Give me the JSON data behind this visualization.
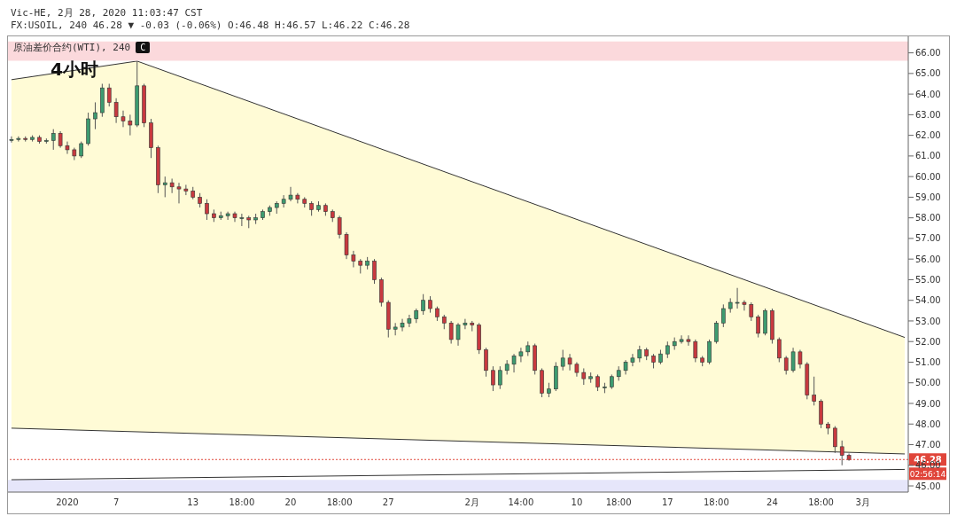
{
  "chart_data": {
    "type": "candlestick",
    "title": "Vic-HE, 2月 28, 2020 11:03:47 CST",
    "subtitle": "FX:USOIL, 240 46.28 ▼ -0.03 (-0.06%) O:46.48 H:46.57 L:46.22 C:46.28",
    "annotations": [
      "原油差价合约(WTI), 240",
      "C",
      "4小时",
      "02:56:14"
    ],
    "categories": [
      null,
      null,
      null,
      null,
      null,
      null,
      null,
      null,
      "2020",
      null,
      null,
      null,
      null,
      null,
      null,
      "7",
      null,
      null,
      null,
      null,
      null,
      null,
      null,
      null,
      null,
      null,
      "13",
      null,
      null,
      null,
      null,
      null,
      null,
      "18:00",
      null,
      null,
      null,
      null,
      null,
      null,
      "20",
      null,
      null,
      null,
      null,
      null,
      null,
      "18:00",
      null,
      null,
      null,
      null,
      null,
      null,
      "27",
      null,
      null,
      null,
      null,
      null,
      null,
      null,
      null,
      null,
      null,
      null,
      "2月",
      null,
      null,
      null,
      null,
      null,
      null,
      "14:00",
      null,
      null,
      null,
      null,
      null,
      null,
      null,
      "10",
      null,
      null,
      null,
      null,
      null,
      "18:00",
      null,
      null,
      null,
      null,
      null,
      null,
      "17",
      null,
      null,
      null,
      null,
      null,
      null,
      "18:00",
      null,
      null,
      null,
      null,
      null,
      null,
      null,
      "24",
      null,
      null,
      null,
      null,
      null,
      null,
      "18:00",
      null,
      null,
      null,
      null,
      null,
      "3月",
      null,
      null,
      null,
      null,
      null,
      null
    ],
    "ohlc": [
      [
        61.75,
        61.95,
        61.65,
        61.8
      ],
      [
        61.8,
        61.95,
        61.7,
        61.85
      ],
      [
        61.85,
        61.95,
        61.7,
        61.8
      ],
      [
        61.8,
        62.0,
        61.7,
        61.9
      ],
      [
        61.9,
        62.0,
        61.6,
        61.7
      ],
      [
        61.7,
        61.85,
        61.6,
        61.75
      ],
      [
        61.75,
        62.3,
        61.3,
        62.1
      ],
      [
        62.1,
        62.2,
        61.4,
        61.5
      ],
      [
        61.5,
        61.7,
        61.1,
        61.3
      ],
      [
        61.3,
        61.4,
        60.8,
        61.0
      ],
      [
        61.0,
        61.7,
        60.9,
        61.6
      ],
      [
        61.6,
        63.1,
        61.5,
        62.8
      ],
      [
        62.8,
        63.6,
        62.3,
        63.1
      ],
      [
        63.1,
        64.5,
        62.9,
        64.3
      ],
      [
        64.3,
        64.5,
        63.4,
        63.6
      ],
      [
        63.6,
        63.8,
        62.6,
        62.9
      ],
      [
        62.9,
        63.2,
        62.4,
        62.7
      ],
      [
        62.7,
        63.0,
        62.0,
        62.5
      ],
      [
        62.5,
        65.6,
        62.4,
        64.4
      ],
      [
        64.4,
        64.5,
        62.4,
        62.6
      ],
      [
        62.6,
        62.8,
        60.9,
        61.4
      ],
      [
        61.4,
        61.5,
        59.2,
        59.6
      ],
      [
        59.6,
        60.0,
        59.0,
        59.7
      ],
      [
        59.7,
        59.9,
        59.2,
        59.5
      ],
      [
        59.5,
        59.7,
        58.7,
        59.4
      ],
      [
        59.4,
        59.6,
        59.1,
        59.3
      ],
      [
        59.3,
        59.5,
        58.9,
        59.0
      ],
      [
        59.0,
        59.2,
        58.5,
        58.7
      ],
      [
        58.7,
        58.9,
        57.9,
        58.2
      ],
      [
        58.2,
        58.4,
        57.8,
        58.0
      ],
      [
        58.0,
        58.3,
        57.9,
        58.1
      ],
      [
        58.1,
        58.3,
        57.9,
        58.2
      ],
      [
        58.2,
        58.3,
        57.8,
        58.0
      ],
      [
        58.0,
        58.2,
        57.6,
        58.0
      ],
      [
        58.0,
        58.1,
        57.5,
        57.9
      ],
      [
        57.9,
        58.2,
        57.7,
        58.0
      ],
      [
        58.0,
        58.4,
        57.9,
        58.3
      ],
      [
        58.3,
        58.6,
        58.1,
        58.5
      ],
      [
        58.5,
        58.8,
        58.2,
        58.7
      ],
      [
        58.7,
        59.1,
        58.5,
        58.9
      ],
      [
        58.9,
        59.5,
        58.8,
        59.1
      ],
      [
        59.1,
        59.2,
        58.7,
        58.9
      ],
      [
        58.9,
        59.0,
        58.5,
        58.7
      ],
      [
        58.7,
        58.8,
        58.1,
        58.4
      ],
      [
        58.4,
        58.8,
        58.3,
        58.6
      ],
      [
        58.6,
        58.7,
        58.1,
        58.3
      ],
      [
        58.3,
        58.4,
        57.8,
        58.0
      ],
      [
        58.0,
        58.1,
        57.0,
        57.2
      ],
      [
        57.2,
        57.3,
        56.0,
        56.2
      ],
      [
        56.2,
        56.4,
        55.6,
        55.9
      ],
      [
        55.9,
        56.0,
        55.3,
        55.7
      ],
      [
        55.7,
        56.1,
        55.5,
        55.9
      ],
      [
        55.9,
        56.0,
        54.8,
        55.0
      ],
      [
        55.0,
        55.1,
        53.7,
        53.9
      ],
      [
        53.9,
        54.0,
        52.2,
        52.6
      ],
      [
        52.6,
        52.9,
        52.3,
        52.7
      ],
      [
        52.7,
        53.1,
        52.5,
        52.9
      ],
      [
        52.9,
        53.3,
        52.7,
        53.1
      ],
      [
        53.1,
        53.6,
        52.9,
        53.5
      ],
      [
        53.5,
        54.3,
        53.3,
        54.0
      ],
      [
        54.0,
        54.2,
        53.4,
        53.6
      ],
      [
        53.6,
        53.7,
        53.0,
        53.2
      ],
      [
        53.2,
        53.3,
        52.6,
        52.9
      ],
      [
        52.9,
        53.0,
        51.9,
        52.1
      ],
      [
        52.1,
        52.9,
        51.8,
        52.8
      ],
      [
        52.8,
        53.1,
        52.6,
        52.9
      ],
      [
        52.9,
        53.0,
        52.5,
        52.8
      ],
      [
        52.8,
        52.9,
        51.4,
        51.6
      ],
      [
        51.6,
        51.7,
        50.3,
        50.6
      ],
      [
        50.6,
        50.8,
        49.6,
        49.9
      ],
      [
        49.9,
        50.8,
        49.7,
        50.6
      ],
      [
        50.6,
        51.1,
        50.4,
        50.9
      ],
      [
        50.9,
        51.4,
        50.5,
        51.3
      ],
      [
        51.3,
        51.7,
        51.0,
        51.5
      ],
      [
        51.5,
        52.0,
        51.3,
        51.8
      ],
      [
        51.8,
        51.9,
        50.4,
        50.6
      ],
      [
        50.6,
        50.7,
        49.3,
        49.5
      ],
      [
        49.5,
        50.0,
        49.3,
        49.7
      ],
      [
        49.7,
        51.0,
        49.6,
        50.8
      ],
      [
        50.8,
        51.6,
        50.6,
        51.2
      ],
      [
        51.2,
        51.4,
        50.6,
        50.9
      ],
      [
        50.9,
        51.0,
        50.3,
        50.5
      ],
      [
        50.5,
        50.7,
        49.9,
        50.2
      ],
      [
        50.2,
        50.5,
        50.0,
        50.3
      ],
      [
        50.3,
        50.4,
        49.6,
        49.8
      ],
      [
        49.8,
        50.0,
        49.5,
        49.8
      ],
      [
        49.8,
        50.4,
        49.7,
        50.3
      ],
      [
        50.3,
        50.8,
        50.1,
        50.6
      ],
      [
        50.6,
        51.1,
        50.4,
        51.0
      ],
      [
        51.0,
        51.4,
        50.8,
        51.2
      ],
      [
        51.2,
        51.8,
        51.0,
        51.6
      ],
      [
        51.6,
        51.7,
        51.1,
        51.3
      ],
      [
        51.3,
        51.4,
        50.7,
        51.0
      ],
      [
        51.0,
        51.6,
        50.9,
        51.4
      ],
      [
        51.4,
        52.0,
        51.2,
        51.8
      ],
      [
        51.8,
        52.2,
        51.6,
        52.0
      ],
      [
        52.0,
        52.3,
        51.9,
        52.1
      ],
      [
        52.1,
        52.3,
        51.8,
        52.0
      ],
      [
        52.0,
        52.1,
        51.0,
        51.2
      ],
      [
        51.2,
        51.3,
        50.8,
        51.0
      ],
      [
        51.0,
        52.1,
        50.9,
        52.0
      ],
      [
        52.0,
        53.0,
        51.9,
        52.9
      ],
      [
        52.9,
        53.8,
        52.7,
        53.6
      ],
      [
        53.6,
        54.1,
        53.4,
        53.9
      ],
      [
        53.9,
        54.6,
        53.6,
        53.9
      ],
      [
        53.9,
        54.0,
        53.5,
        53.8
      ],
      [
        53.8,
        53.9,
        53.0,
        53.2
      ],
      [
        53.2,
        53.3,
        52.2,
        52.4
      ],
      [
        52.4,
        53.6,
        52.3,
        53.5
      ],
      [
        53.5,
        53.6,
        51.9,
        52.1
      ],
      [
        52.1,
        52.2,
        51.0,
        51.2
      ],
      [
        51.2,
        51.3,
        50.4,
        50.6
      ],
      [
        50.6,
        51.7,
        50.5,
        51.5
      ],
      [
        51.5,
        51.6,
        50.7,
        50.9
      ],
      [
        50.9,
        51.0,
        49.2,
        49.4
      ],
      [
        49.4,
        50.3,
        48.9,
        49.1
      ],
      [
        49.1,
        49.2,
        47.8,
        48.0
      ],
      [
        48.0,
        48.1,
        47.5,
        47.8
      ],
      [
        47.8,
        47.9,
        46.6,
        46.9
      ],
      [
        46.9,
        47.2,
        46.0,
        46.48
      ],
      [
        46.48,
        46.57,
        46.22,
        46.28
      ],
      null,
      null,
      null,
      null,
      null,
      null,
      null,
      null
    ],
    "colors": [
      "#3d9b70",
      "#3d9b70",
      "#c8393f",
      "#3d9b70",
      "#c8393f",
      "#3d9b70",
      "#3d9b70",
      "#c8393f",
      "#c8393f",
      "#c8393f",
      "#3d9b70",
      "#3d9b70",
      "#3d9b70",
      "#3d9b70",
      "#c8393f",
      "#c8393f",
      "#c8393f",
      "#c8393f",
      "#3d9b70",
      "#c8393f",
      "#c8393f",
      "#c8393f",
      "#3d9b70",
      "#c8393f",
      "#c8393f",
      "#c8393f",
      "#c8393f",
      "#c8393f",
      "#c8393f",
      "#c8393f",
      "#3d9b70",
      "#3d9b70",
      "#c8393f",
      "#3d9b70",
      "#c8393f",
      "#3d9b70",
      "#3d9b70",
      "#3d9b70",
      "#3d9b70",
      "#3d9b70",
      "#3d9b70",
      "#c8393f",
      "#c8393f",
      "#c8393f",
      "#3d9b70",
      "#c8393f",
      "#c8393f",
      "#c8393f",
      "#c8393f",
      "#c8393f",
      "#c8393f",
      "#3d9b70",
      "#c8393f",
      "#c8393f",
      "#c8393f",
      "#3d9b70",
      "#3d9b70",
      "#3d9b70",
      "#3d9b70",
      "#3d9b70",
      "#c8393f",
      "#c8393f",
      "#c8393f",
      "#c8393f",
      "#3d9b70",
      "#3d9b70",
      "#c8393f",
      "#c8393f",
      "#c8393f",
      "#c8393f",
      "#3d9b70",
      "#3d9b70",
      "#3d9b70",
      "#3d9b70",
      "#3d9b70",
      "#c8393f",
      "#c8393f",
      "#3d9b70",
      "#3d9b70",
      "#3d9b70",
      "#c8393f",
      "#c8393f",
      "#c8393f",
      "#3d9b70",
      "#c8393f",
      "#3d9b70",
      "#3d9b70",
      "#3d9b70",
      "#3d9b70",
      "#3d9b70",
      "#3d9b70",
      "#c8393f",
      "#c8393f",
      "#3d9b70",
      "#3d9b70",
      "#3d9b70",
      "#3d9b70",
      "#c8393f",
      "#c8393f",
      "#c8393f",
      "#3d9b70",
      "#3d9b70",
      "#3d9b70",
      "#3d9b70",
      "#3d9b70",
      "#c8393f",
      "#c8393f",
      "#c8393f",
      "#3d9b70",
      "#c8393f",
      "#c8393f",
      "#c8393f",
      "#3d9b70",
      "#c8393f",
      "#c8393f",
      "#c8393f",
      "#c8393f",
      "#c8393f",
      "#c8393f",
      "#c8393f",
      "#c8393f",
      null,
      null,
      null,
      null,
      null,
      null,
      null,
      null
    ],
    "series": [
      {
        "type": "area",
        "color": "#fffbd6",
        "values": [
          64.7,
          null,
          null,
          null,
          null,
          null,
          null,
          null,
          null,
          null,
          null,
          null,
          null,
          null,
          null,
          null,
          null,
          null,
          65.6,
          null,
          null,
          null,
          null,
          null,
          null,
          null,
          null,
          null,
          null,
          null,
          null,
          null,
          null,
          null,
          null,
          null,
          null,
          null,
          null,
          null,
          null,
          null,
          null,
          null,
          null,
          null,
          null,
          null,
          null,
          null,
          null,
          null,
          null,
          null,
          null,
          null,
          null,
          null,
          null,
          null,
          null,
          null,
          null,
          null,
          null,
          null,
          null,
          null,
          null,
          null,
          null,
          null,
          null,
          null,
          null,
          null,
          null,
          null,
          null,
          null,
          null,
          null,
          null,
          null,
          null,
          null,
          null,
          null,
          null,
          null,
          null,
          null,
          null,
          null,
          null,
          null,
          null,
          null,
          null,
          null,
          null,
          null,
          null,
          null,
          null,
          null,
          null,
          null,
          null,
          null,
          null,
          null,
          null,
          null,
          null,
          null,
          null,
          null,
          null,
          null,
          null,
          null,
          null,
          null,
          null,
          null,
          null,
          null,
          52.2
        ]
      },
      {
        "type": "area",
        "color": "#ffffff",
        "values": [
          47.8,
          null,
          null,
          null,
          null,
          null,
          null,
          null,
          null,
          null,
          null,
          null,
          null,
          null,
          null,
          null,
          null,
          null,
          null,
          null,
          null,
          null,
          null,
          null,
          null,
          null,
          null,
          null,
          null,
          null,
          null,
          null,
          null,
          null,
          null,
          null,
          null,
          null,
          null,
          null,
          null,
          null,
          null,
          null,
          null,
          null,
          null,
          null,
          null,
          null,
          null,
          null,
          null,
          null,
          null,
          null,
          null,
          null,
          null,
          null,
          null,
          null,
          null,
          null,
          null,
          null,
          null,
          null,
          null,
          null,
          null,
          null,
          null,
          null,
          null,
          null,
          null,
          null,
          null,
          null,
          null,
          null,
          null,
          null,
          null,
          null,
          null,
          null,
          null,
          null,
          null,
          null,
          null,
          null,
          null,
          null,
          null,
          null,
          null,
          null,
          null,
          null,
          null,
          null,
          null,
          null,
          null,
          null,
          null,
          null,
          null,
          null,
          null,
          null,
          null,
          null,
          null,
          null,
          null,
          null,
          null,
          null,
          null,
          null,
          null,
          null,
          null,
          null,
          46.55
        ]
      },
      {
        "type": "line",
        "color": "#333333",
        "values": [
          45.3,
          null,
          null,
          null,
          null,
          null,
          null,
          null,
          null,
          null,
          null,
          null,
          null,
          null,
          null,
          null,
          null,
          null,
          null,
          null,
          null,
          null,
          null,
          null,
          null,
          null,
          null,
          null,
          null,
          null,
          null,
          null,
          null,
          null,
          null,
          null,
          null,
          null,
          null,
          null,
          null,
          null,
          null,
          null,
          null,
          null,
          null,
          null,
          null,
          null,
          null,
          null,
          null,
          null,
          null,
          null,
          null,
          null,
          null,
          null,
          null,
          null,
          null,
          null,
          null,
          null,
          null,
          null,
          null,
          null,
          null,
          null,
          null,
          null,
          null,
          null,
          null,
          null,
          null,
          null,
          null,
          null,
          null,
          null,
          null,
          null,
          null,
          null,
          null,
          null,
          null,
          null,
          null,
          null,
          null,
          null,
          null,
          null,
          null,
          null,
          null,
          null,
          null,
          null,
          null,
          null,
          null,
          null,
          null,
          null,
          null,
          null,
          null,
          null,
          null,
          null,
          null,
          null,
          null,
          null,
          null,
          null,
          null,
          null,
          null,
          null,
          null,
          null,
          45.8
        ]
      }
    ],
    "bands": [
      {
        "axis": "y",
        "from": 65.62,
        "to": 66.55,
        "color": "#fbd9dc"
      },
      {
        "axis": "y",
        "from": 44.7,
        "to": 45.29,
        "color": "#e6e6fa"
      }
    ],
    "ref_lines": [
      {
        "axis": "y",
        "value": 46.28,
        "label": "46.28",
        "color": "#e0453a",
        "line_style": "dotted"
      }
    ],
    "ylim": [
      44.7,
      66.8
    ],
    "yticks": [
      {
        "value": 45,
        "label": "45.00"
      },
      {
        "value": 46,
        "label": "46.00"
      },
      {
        "value": 47,
        "label": "47.00"
      },
      {
        "value": 48,
        "label": "48.00"
      },
      {
        "value": 49,
        "label": "49.00"
      },
      {
        "value": 50,
        "label": "50.00"
      },
      {
        "value": 51,
        "label": "51.00"
      },
      {
        "value": 52,
        "label": "52.00"
      },
      {
        "value": 53,
        "label": "53.00"
      },
      {
        "value": 54,
        "label": "54.00"
      },
      {
        "value": 55,
        "label": "55.00"
      },
      {
        "value": 56,
        "label": "56.00"
      },
      {
        "value": 57,
        "label": "57.00"
      },
      {
        "value": 58,
        "label": "58.00"
      },
      {
        "value": 59,
        "label": "59.00"
      },
      {
        "value": 60,
        "label": "60.00"
      },
      {
        "value": 61,
        "label": "61.00"
      },
      {
        "value": 62,
        "label": "62.00"
      },
      {
        "value": 63,
        "label": "63.00"
      },
      {
        "value": 64,
        "label": "64.00"
      },
      {
        "value": 65,
        "label": "65.00"
      },
      {
        "value": 66,
        "label": "66.00"
      }
    ],
    "grid": false,
    "legend": false
  }
}
